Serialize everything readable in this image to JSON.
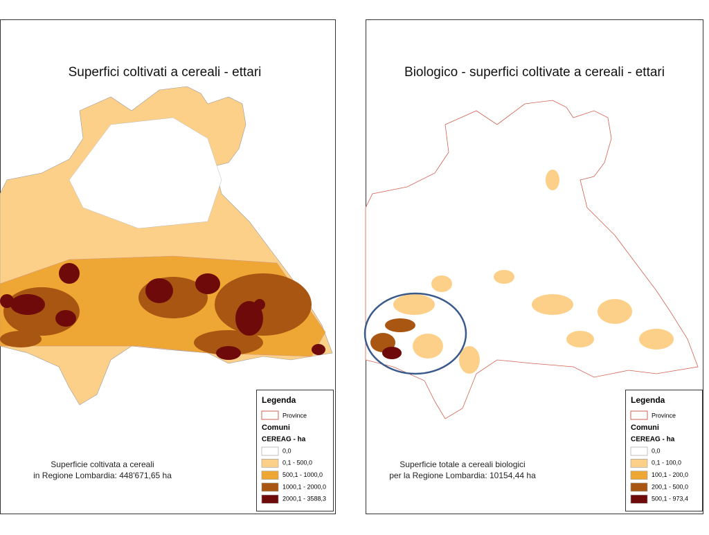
{
  "panels": [
    {
      "title": "Superfici coltivati a cereali - ettari",
      "note": [
        "Superficie coltivata a cereali",
        "in Regione Lombardia: 448'671,65 ha"
      ],
      "legend": {
        "title": "Legenda",
        "province": "Province",
        "comuni": "Comuni",
        "field": "CEREAG - ha",
        "classes": [
          {
            "label": "0,0",
            "color": "#ffffff"
          },
          {
            "label": "0,1 - 500,0",
            "color": "#fdd08a"
          },
          {
            "label": "500,1 - 1000,0",
            "color": "#eea635"
          },
          {
            "label": "1000,1 - 2000,0",
            "color": "#a85612"
          },
          {
            "label": "2000,1 - 3588,3",
            "color": "#6e0a0a"
          }
        ]
      }
    },
    {
      "title": "Biologico - superfici coltivate a cereali - ettari",
      "note": [
        "Superficie totale a cereali biologici",
        "per la Regione Lombardia: 10154,44 ha"
      ],
      "legend": {
        "title": "Legenda",
        "province": "Province",
        "comuni": "Comuni",
        "field": "CEREAG - ha",
        "classes": [
          {
            "label": "0,0",
            "color": "#ffffff"
          },
          {
            "label": "0,1 - 100,0",
            "color": "#fdd08a"
          },
          {
            "label": "100,1 - 200,0",
            "color": "#eea635"
          },
          {
            "label": "200,1 - 500,0",
            "color": "#a85612"
          },
          {
            "label": "500,1 - 973,4",
            "color": "#6e0a0a"
          }
        ]
      }
    }
  ]
}
